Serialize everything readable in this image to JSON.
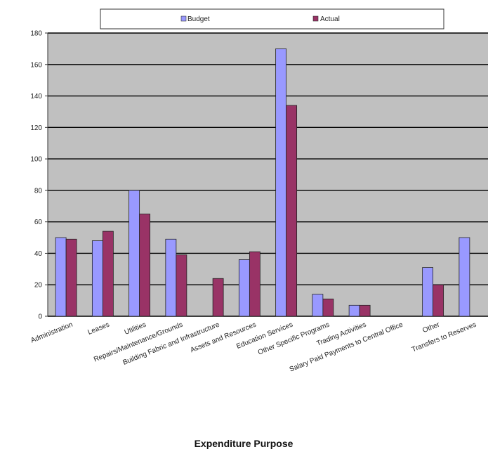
{
  "chart_data": {
    "type": "bar",
    "title": "",
    "xlabel": "Expenditure Purpose",
    "ylabel": "",
    "ylim": [
      0,
      180
    ],
    "yticks": [
      0,
      20,
      40,
      60,
      80,
      100,
      120,
      140,
      160,
      180
    ],
    "grid": true,
    "legend_position": "top",
    "categories": [
      "Administration",
      "Leases",
      "Utilities",
      "Repairs/Maintenance/Grounds",
      "Building Fabric and Infrastructure",
      "Assets and Resources",
      "Education Services",
      "Other Specific Programs",
      "Trading Activities",
      "Salary Paid Payments to Central Office",
      "Other",
      "Transfers to Reserves"
    ],
    "series": [
      {
        "name": "Budget",
        "color": "#9999ff",
        "values": [
          50,
          48,
          80,
          49,
          0,
          36,
          170,
          14,
          7,
          0,
          31,
          50
        ]
      },
      {
        "name": "Actual",
        "color": "#993366",
        "values": [
          49,
          54,
          65,
          39,
          24,
          41,
          134,
          11,
          7,
          0,
          20,
          0
        ]
      }
    ],
    "plot_background": "#c0c0c0"
  }
}
